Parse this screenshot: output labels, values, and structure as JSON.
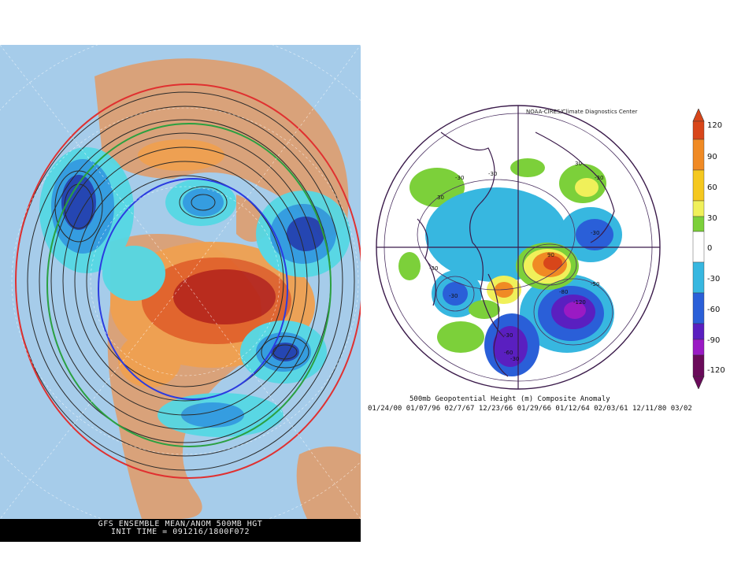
{
  "left_panel": {
    "caption_line1": "GFS ENSEMBLE MEAN/ANOM 500MB HGT",
    "caption_line2": "INIT TIME = 091216/1800F072"
  },
  "right_panel": {
    "credit": "NOAA-CIRES/Climate Diagnostics Center",
    "caption_line1": "500mb Geopotential Height (m) Composite Anomaly",
    "caption_line2": "01/24/00 01/07/96 02/7/67 12/23/66 01/29/66 01/12/64 02/03/61 12/11/80 03/02",
    "contour_labels": [
      "-30",
      "-30",
      "30",
      "-30",
      "-30",
      "-50",
      "-80",
      "-120",
      "-30",
      "-30",
      "-60",
      "-30",
      "30",
      "90",
      "-30"
    ]
  },
  "colorbar": {
    "ticks": [
      "120",
      "90",
      "60",
      "30",
      "0",
      "-30",
      "-60",
      "-90",
      "-120"
    ],
    "colors": [
      "#d8461a",
      "#f08a24",
      "#f5c81e",
      "#f0f05a",
      "#7cd03a",
      "#ffffff",
      "#37b7e0",
      "#2a5fd8",
      "#5a1fc0",
      "#9a1ac4",
      "#6a0a5a"
    ]
  },
  "map_colors": {
    "ocean": "#a6ccea",
    "land": "#d9a27a",
    "strong_positive": "#b8261a",
    "positive": "#e2622a",
    "weak_positive": "#f0a050",
    "weak_negative": "#55d8e4",
    "negative": "#2f9be0",
    "strong_negative": "#1f3fb0"
  }
}
